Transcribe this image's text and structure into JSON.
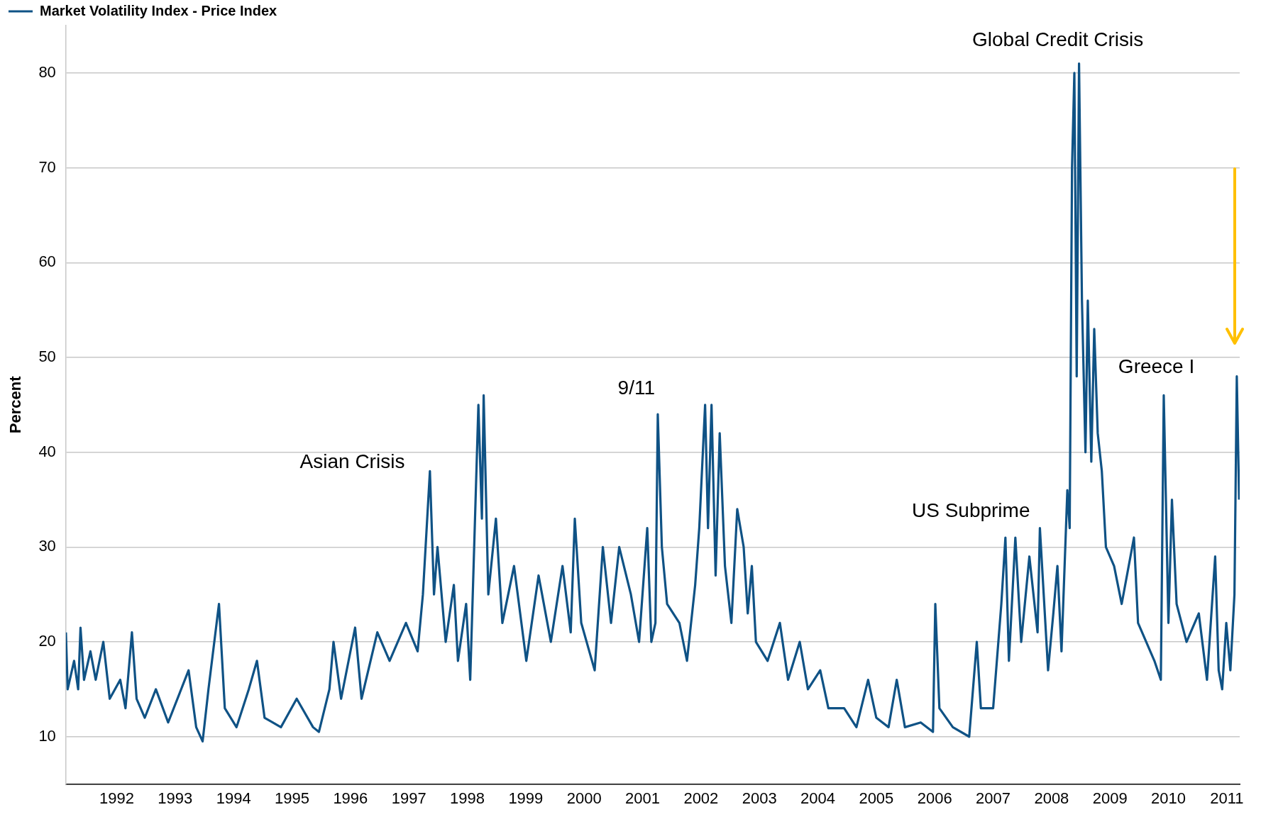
{
  "chart_data": {
    "type": "line",
    "ylabel": "Percent",
    "legend": "top left",
    "grid": "y",
    "marker": "none",
    "line_style": "solid",
    "xlim": [
      1991.63,
      2011.72
    ],
    "xticks": [
      {
        "value": 1992.5,
        "label": "1992"
      },
      {
        "value": 1993.5,
        "label": "1993"
      },
      {
        "value": 1994.5,
        "label": "1994"
      },
      {
        "value": 1995.5,
        "label": "1995"
      },
      {
        "value": 1996.5,
        "label": "1996"
      },
      {
        "value": 1997.5,
        "label": "1997"
      },
      {
        "value": 1998.5,
        "label": "1998"
      },
      {
        "value": 1999.5,
        "label": "1999"
      },
      {
        "value": 2000.5,
        "label": "2000"
      },
      {
        "value": 2001.5,
        "label": "2001"
      },
      {
        "value": 2002.5,
        "label": "2002"
      },
      {
        "value": 2003.5,
        "label": "2003"
      },
      {
        "value": 2004.5,
        "label": "2004"
      },
      {
        "value": 2005.5,
        "label": "2005"
      },
      {
        "value": 2006.5,
        "label": "2006"
      },
      {
        "value": 2007.5,
        "label": "2007"
      },
      {
        "value": 2008.5,
        "label": "2008"
      },
      {
        "value": 2009.5,
        "label": "2009"
      },
      {
        "value": 2010.5,
        "label": "2010"
      },
      {
        "value": 2011.5,
        "label": "2011"
      }
    ],
    "ylim": [
      5,
      85
    ],
    "yticks": [
      10,
      20,
      30,
      40,
      50,
      60,
      70,
      80
    ],
    "annotations": [
      "Asian Crisis",
      "9/11",
      "US Subprime",
      "Global Credit Crisis",
      "Greece I"
    ],
    "series": [
      {
        "name": "Market Volatility Index - Price Index",
        "color": "#0f5285",
        "x": [
          1991.63,
          1991.66,
          1991.77,
          1991.84,
          1991.88,
          1991.94,
          1992.05,
          1992.14,
          1992.27,
          1992.38,
          1992.56,
          1992.65,
          1992.76,
          1992.84,
          1992.98,
          1993.17,
          1993.38,
          1993.73,
          1993.86,
          1993.97,
          1994.07,
          1994.25,
          1994.35,
          1994.55,
          1994.76,
          1994.9,
          1995.03,
          1995.31,
          1995.58,
          1995.86,
          1995.96,
          1996.14,
          1996.21,
          1996.34,
          1996.58,
          1996.69,
          1996.96,
          1997.17,
          1997.45,
          1997.65,
          1997.74,
          1997.86,
          1997.93,
          1997.99,
          1998.13,
          1998.27,
          1998.34,
          1998.48,
          1998.55,
          1998.69,
          1998.75,
          1998.78,
          1998.86,
          1998.99,
          1999.1,
          1999.3,
          1999.51,
          1999.72,
          1999.93,
          2000.13,
          2000.27,
          2000.34,
          2000.45,
          2000.68,
          2000.82,
          2000.96,
          2001.1,
          2001.3,
          2001.44,
          2001.58,
          2001.65,
          2001.72,
          2001.76,
          2001.83,
          2001.92,
          2002.13,
          2002.26,
          2002.4,
          2002.47,
          2002.57,
          2002.62,
          2002.68,
          2002.75,
          2002.82,
          2002.91,
          2003.02,
          2003.12,
          2003.23,
          2003.3,
          2003.37,
          2003.44,
          2003.64,
          2003.85,
          2003.99,
          2004.19,
          2004.33,
          2004.54,
          2004.68,
          2004.95,
          2005.16,
          2005.36,
          2005.5,
          2005.71,
          2005.85,
          2005.99,
          2006.26,
          2006.47,
          2006.51,
          2006.58,
          2006.81,
          2007.09,
          2007.22,
          2007.29,
          2007.5,
          2007.64,
          2007.71,
          2007.77,
          2007.88,
          2007.98,
          2008.12,
          2008.26,
          2008.3,
          2008.44,
          2008.53,
          2008.6,
          2008.67,
          2008.77,
          2008.81,
          2008.85,
          2008.89,
          2008.93,
          2008.97,
          2009.02,
          2009.08,
          2009.12,
          2009.18,
          2009.23,
          2009.29,
          2009.36,
          2009.43,
          2009.57,
          2009.7,
          2009.91,
          2009.98,
          2010.12,
          2010.26,
          2010.37,
          2010.42,
          2010.5,
          2010.56,
          2010.64,
          2010.81,
          2011.02,
          2011.16,
          2011.3,
          2011.36,
          2011.42,
          2011.49,
          2011.56,
          2011.63,
          2011.67,
          2011.71
        ],
        "values": [
          21,
          15,
          18,
          15,
          21.5,
          16,
          19,
          16,
          20,
          14,
          16,
          13,
          21,
          14,
          12,
          15,
          11.5,
          17,
          11,
          9.5,
          15,
          24,
          13,
          11,
          15,
          18,
          12,
          11,
          14,
          11,
          10.5,
          15,
          20,
          14,
          21.5,
          14,
          21,
          18,
          22,
          19,
          25,
          38,
          25,
          30,
          20,
          26,
          18,
          24,
          16,
          45,
          33,
          46,
          25,
          33,
          22,
          28,
          18,
          27,
          20,
          28,
          21,
          33,
          22,
          17,
          30,
          22,
          30,
          25,
          20,
          32,
          20,
          22,
          44,
          30,
          24,
          22,
          18,
          26,
          32,
          45,
          32,
          45,
          27,
          42,
          28,
          22,
          34,
          30,
          23,
          28,
          20,
          18,
          22,
          16,
          20,
          15,
          17,
          13,
          13,
          11,
          16,
          12,
          11,
          16,
          11,
          11.5,
          10.5,
          24,
          13,
          11,
          10,
          20,
          13,
          13,
          24,
          31,
          18,
          31,
          20,
          29,
          21,
          32,
          17,
          23,
          28,
          19,
          36,
          32,
          70,
          80,
          48,
          81,
          56,
          40,
          56,
          39,
          53,
          42,
          38,
          30,
          28,
          24,
          31,
          22,
          20,
          18,
          16,
          46,
          22,
          35,
          24,
          20,
          23,
          16,
          29,
          17,
          15,
          22,
          17,
          25,
          48,
          35
        ]
      }
    ]
  }
}
